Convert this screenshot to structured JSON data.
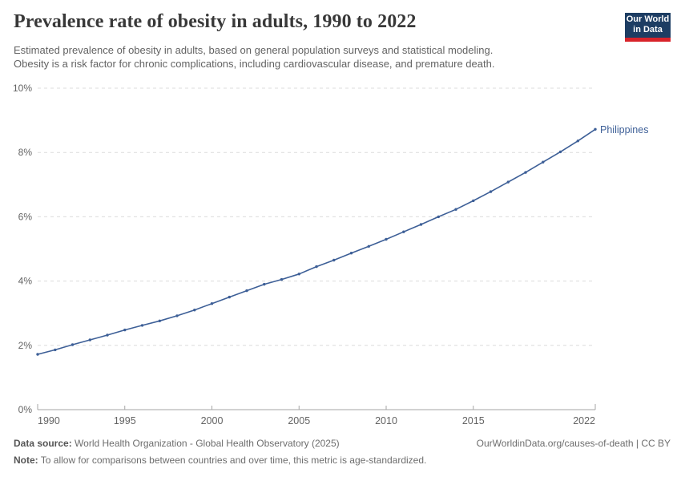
{
  "header": {
    "title": "Prevalence rate of obesity in adults, 1990 to 2022",
    "subtitle_line1": "Estimated prevalence of obesity in adults, based on general population surveys and statistical modeling.",
    "subtitle_line2": "Obesity is a risk factor for chronic complications, including cardiovascular disease, and premature death.",
    "logo": {
      "line1": "Our World",
      "line2": "in Data",
      "bg_color": "#1d3d63",
      "accent_color": "#d8232a"
    }
  },
  "chart_data": {
    "type": "line",
    "title": "Prevalence rate of obesity in adults, 1990 to 2022",
    "xlabel": "",
    "ylabel": "",
    "xlim": [
      1990,
      2022
    ],
    "ylim": [
      0,
      10
    ],
    "grid": "horizontal-dashed",
    "legend_position": "end-of-line-label",
    "x": [
      1990,
      1991,
      1992,
      1993,
      1994,
      1995,
      1996,
      1997,
      1998,
      1999,
      2000,
      2001,
      2002,
      2003,
      2004,
      2005,
      2006,
      2007,
      2008,
      2009,
      2010,
      2011,
      2012,
      2013,
      2014,
      2015,
      2016,
      2017,
      2018,
      2019,
      2020,
      2021,
      2022
    ],
    "series": [
      {
        "name": "Philippines",
        "color": "#3d5f97",
        "values": [
          1.72,
          1.86,
          2.02,
          2.17,
          2.32,
          2.48,
          2.62,
          2.76,
          2.92,
          3.1,
          3.3,
          3.5,
          3.7,
          3.9,
          4.05,
          4.22,
          4.45,
          4.65,
          4.87,
          5.08,
          5.3,
          5.53,
          5.76,
          6.0,
          6.23,
          6.5,
          6.78,
          7.08,
          7.38,
          7.7,
          8.02,
          8.36,
          8.72
        ]
      }
    ],
    "xticks": [
      {
        "value": 1990,
        "label": "1990"
      },
      {
        "value": 1995,
        "label": "1995"
      },
      {
        "value": 2000,
        "label": "2000"
      },
      {
        "value": 2005,
        "label": "2005"
      },
      {
        "value": 2010,
        "label": "2010"
      },
      {
        "value": 2015,
        "label": "2015"
      },
      {
        "value": 2022,
        "label": "2022"
      }
    ],
    "yticks": [
      {
        "value": 0,
        "label": "0%"
      },
      {
        "value": 2,
        "label": "2%"
      },
      {
        "value": 4,
        "label": "4%"
      },
      {
        "value": 6,
        "label": "6%"
      },
      {
        "value": 8,
        "label": "8%"
      },
      {
        "value": 10,
        "label": "10%"
      }
    ],
    "colors": {
      "grid": "#dcdcdc",
      "axis": "#a6a6a6",
      "tick_label": "#636363"
    }
  },
  "footer": {
    "datasource_label": "Data source:",
    "datasource_text": "World Health Organization - Global Health Observatory (2025)",
    "attribution": "OurWorldinData.org/causes-of-death | CC BY",
    "note_label": "Note:",
    "note_text": "To allow for comparisons between countries and over time, this metric is age-standardized."
  }
}
